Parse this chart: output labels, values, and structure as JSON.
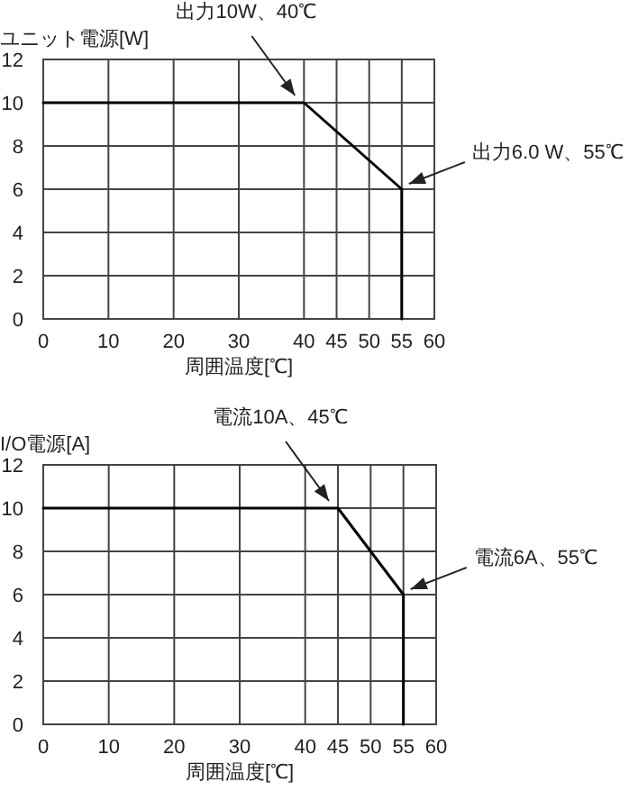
{
  "chart_data": [
    {
      "type": "line",
      "ylabel": "ユニット電源[W]",
      "xlabel": "周囲温度[℃]",
      "x": [
        0,
        40,
        55,
        55
      ],
      "series": [
        {
          "color": "#000000",
          "values": [
            10,
            10,
            6,
            0
          ]
        }
      ],
      "xlim": [
        0,
        60
      ],
      "xticks": [
        0,
        10,
        20,
        30,
        40,
        45,
        50,
        55,
        60
      ],
      "ylim": [
        0,
        12
      ],
      "yticks": [
        0,
        2,
        4,
        6,
        8,
        10,
        12
      ],
      "grid": true,
      "annotations": [
        {
          "text": "出力10W、40℃",
          "x": 40,
          "y": 10
        },
        {
          "text": "出力6.0 W、55℃",
          "x": 55,
          "y": 6
        }
      ]
    },
    {
      "type": "line",
      "ylabel": "I/O電源[A]",
      "xlabel": "周囲温度[℃]",
      "x": [
        0,
        45,
        55,
        55
      ],
      "series": [
        {
          "color": "#000000",
          "values": [
            10,
            10,
            6,
            0
          ]
        }
      ],
      "xlim": [
        0,
        60
      ],
      "xticks": [
        0,
        10,
        20,
        30,
        40,
        45,
        50,
        55,
        60
      ],
      "ylim": [
        0,
        12
      ],
      "yticks": [
        0,
        2,
        4,
        6,
        8,
        10,
        12
      ],
      "grid": true,
      "annotations": [
        {
          "text": "電流10A、45℃",
          "x": 45,
          "y": 10
        },
        {
          "text": "電流6A、55℃",
          "x": 55,
          "y": 6
        }
      ]
    }
  ]
}
